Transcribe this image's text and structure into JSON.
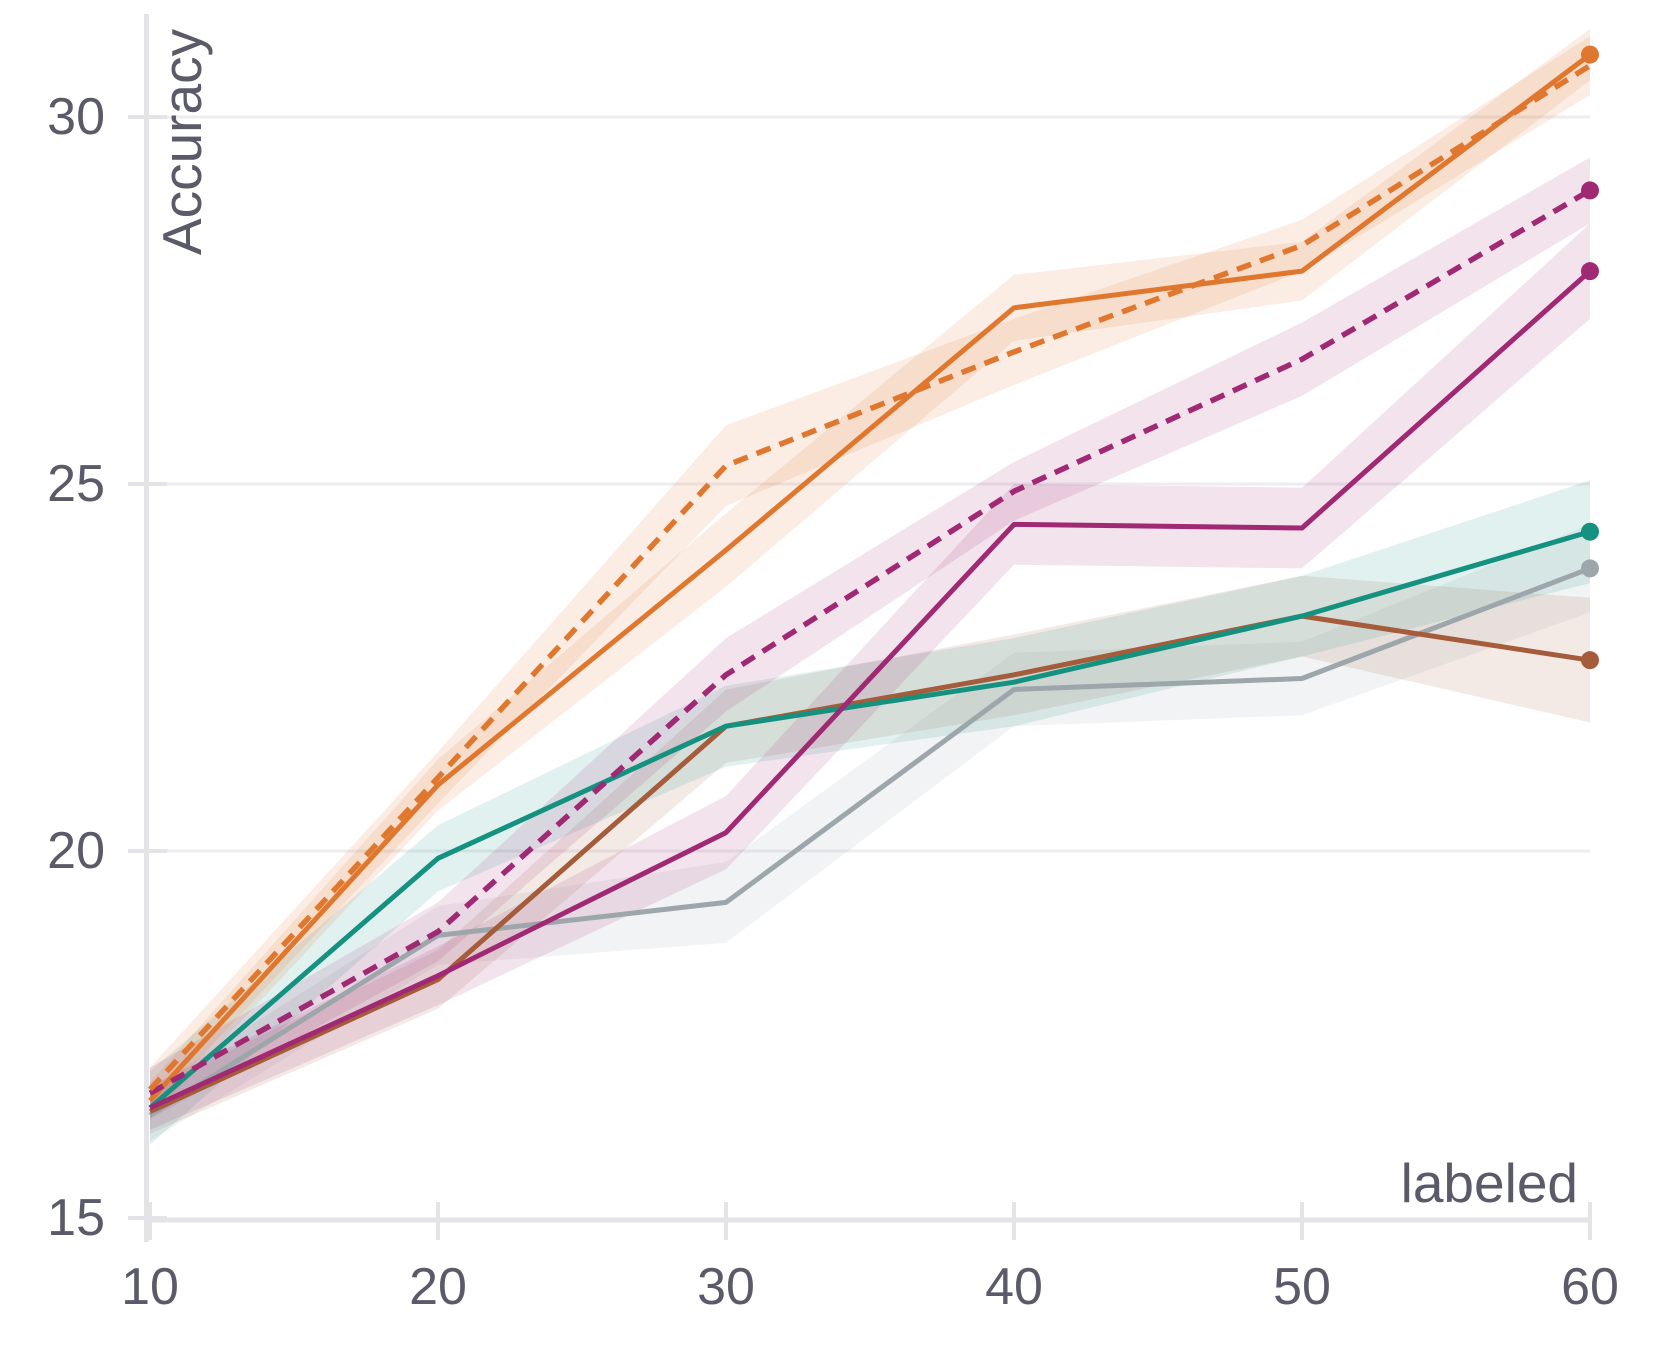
{
  "figure": {
    "background": "#FFFFFF",
    "text_color": "#5A5A68",
    "grid_color": "#EDEDF0",
    "axis_color": "#E3E3E8",
    "band_opacity": 0.13
  },
  "chart_data": {
    "type": "line",
    "title": "",
    "xlabel": "labeled",
    "ylabel": "Accuracy",
    "x": [
      10,
      20,
      30,
      40,
      50,
      60
    ],
    "xlim": [
      10,
      60
    ],
    "ylim": [
      15,
      31.6
    ],
    "x_tick_labels": [
      "10",
      "20",
      "30",
      "40",
      "50",
      "60"
    ],
    "y_tick_values": [
      15,
      20,
      25,
      30
    ],
    "y_tick_labels": [
      "15",
      "20",
      "25",
      "30"
    ],
    "grid": "horizontal-only",
    "legend_position": "none",
    "markers": "end-point-only",
    "series": [
      {
        "name": "gray-solid",
        "line_style": "solid",
        "color": "#9DA6AB",
        "values": [
          16.4,
          18.85,
          19.3,
          22.2,
          22.35,
          23.85
        ],
        "band_halfwidth": [
          0.35,
          0.4,
          0.55,
          0.5,
          0.5,
          0.6
        ],
        "end_marker": true
      },
      {
        "name": "brown-solid",
        "line_style": "solid",
        "color": "#A45C3A",
        "values": [
          16.45,
          18.25,
          21.7,
          22.4,
          23.2,
          22.6
        ],
        "band_halfwidth": [
          0.3,
          0.4,
          0.5,
          0.55,
          0.55,
          0.85
        ],
        "end_marker": true
      },
      {
        "name": "teal-solid",
        "line_style": "solid",
        "color": "#159180",
        "values": [
          16.5,
          19.9,
          21.7,
          22.3,
          23.2,
          24.35
        ],
        "band_halfwidth": [
          0.5,
          0.45,
          0.55,
          0.6,
          0.55,
          0.7
        ],
        "end_marker": true
      },
      {
        "name": "magenta-solid",
        "line_style": "solid",
        "color": "#A02973",
        "values": [
          16.5,
          18.3,
          20.25,
          24.45,
          24.4,
          27.9
        ],
        "band_halfwidth": [
          0.3,
          0.4,
          0.5,
          0.55,
          0.55,
          0.65
        ],
        "end_marker": true
      },
      {
        "name": "orange-solid",
        "line_style": "solid",
        "color": "#E0772E",
        "values": [
          16.6,
          20.9,
          24.1,
          27.4,
          27.9,
          30.85
        ],
        "band_halfwidth": [
          0.25,
          0.35,
          0.5,
          0.45,
          0.4,
          0.35
        ],
        "end_marker": true
      },
      {
        "name": "magenta-dashed",
        "line_style": "dashed",
        "color": "#A02973",
        "values": [
          16.7,
          18.9,
          22.4,
          24.9,
          26.7,
          29.0
        ],
        "band_halfwidth": [
          0.35,
          0.4,
          0.5,
          0.4,
          0.5,
          0.45
        ],
        "end_marker": true
      },
      {
        "name": "orange-dashed",
        "line_style": "dashed",
        "color": "#E0772E",
        "values": [
          16.75,
          21.0,
          25.25,
          26.8,
          28.25,
          30.7
        ],
        "band_halfwidth": [
          0.3,
          0.35,
          0.55,
          0.45,
          0.35,
          0.4
        ],
        "end_marker": false
      }
    ]
  }
}
